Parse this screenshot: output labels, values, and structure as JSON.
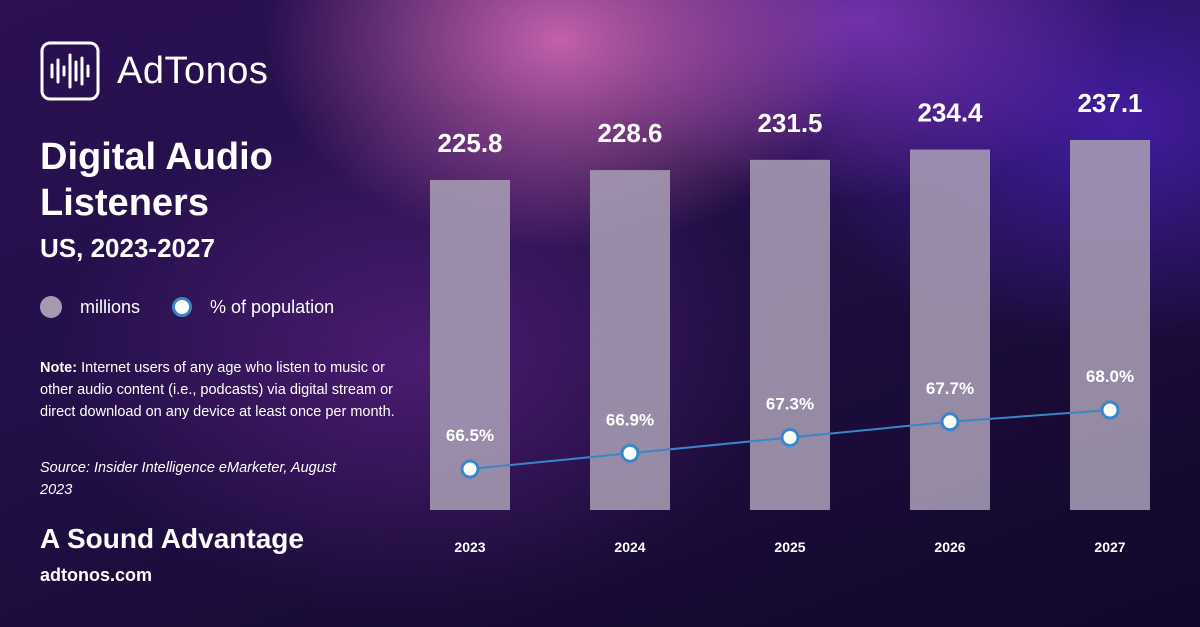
{
  "brand": {
    "name": "AdTonos",
    "icon": "soundwave-icon"
  },
  "title": "Digital Audio Listeners",
  "subtitle": "US, 2023-2027",
  "legend": {
    "millions": "millions",
    "percent": "% of population"
  },
  "note": {
    "label": "Note:",
    "text": "Internet users of any age who listen to music or other audio content (i.e., podcasts) via digital stream or direct download on any device at least once per month."
  },
  "source": "Source: Insider Intelligence eMarketer, August 2023",
  "tagline": "A Sound Advantage",
  "url": "adtonos.com",
  "colors": {
    "bar": "#a79cb4",
    "line": "#3a86c6",
    "marker_fill": "#ffffff"
  },
  "chart_data": {
    "type": "bar",
    "categories": [
      "2023",
      "2024",
      "2025",
      "2026",
      "2027"
    ],
    "series": [
      {
        "name": "millions",
        "type": "bar",
        "values": [
          225.8,
          228.6,
          231.5,
          234.4,
          237.1
        ],
        "labels": [
          "225.8",
          "228.6",
          "231.5",
          "234.4",
          "237.1"
        ]
      },
      {
        "name": "% of population",
        "type": "line",
        "values": [
          66.5,
          66.9,
          67.3,
          67.7,
          68.0
        ],
        "labels": [
          "66.5%",
          "66.9%",
          "67.3%",
          "67.7%",
          "68.0%"
        ]
      }
    ],
    "grid": false,
    "legend": "left"
  }
}
